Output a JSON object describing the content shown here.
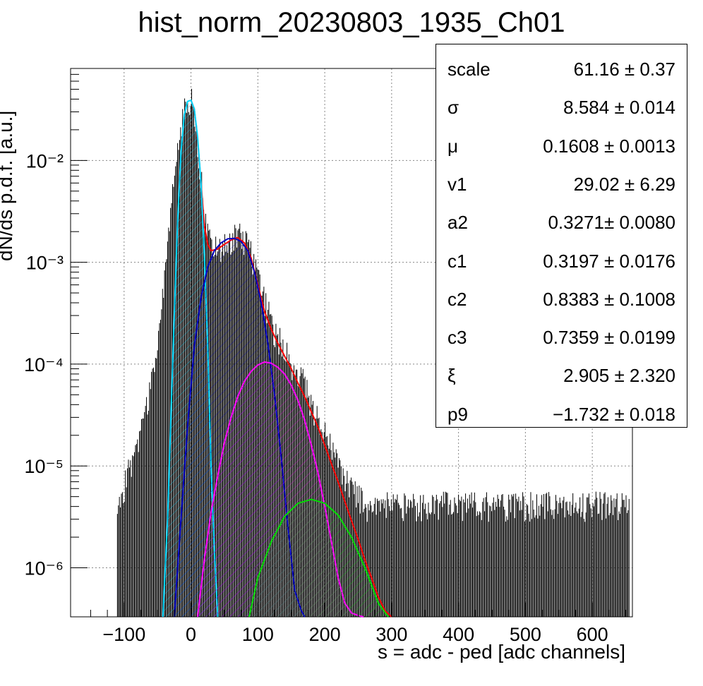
{
  "chart_data": {
    "type": "line",
    "title": "hist_norm_20230803_1935_Ch01",
    "xlabel": "s = adc - ped [adc channels]",
    "ylabel": "dN/ds p.d.f. [a.u.]",
    "xlim": [
      -180,
      660
    ],
    "ylim": [
      3.3e-07,
      0.08
    ],
    "yscale": "log",
    "grid": true,
    "xticks": [
      -100,
      0,
      100,
      200,
      300,
      400,
      500,
      600
    ],
    "xtick_labels": [
      "−100",
      "0",
      "100",
      "200",
      "300",
      "400",
      "500",
      "600"
    ],
    "yticks": [
      1e-06,
      1e-05,
      0.0001,
      0.001,
      0.01
    ],
    "ytick_labels": [
      "10⁻⁶",
      "10⁻⁵",
      "10⁻⁴",
      "10⁻³",
      "10⁻²"
    ],
    "legend_position": "top-right",
    "stats": [
      {
        "name": "scale",
        "value": "61.16 ± 0.37"
      },
      {
        "name": "σ",
        "value": "8.584 ± 0.014"
      },
      {
        "name": "μ",
        "value": "0.1608 ± 0.0013"
      },
      {
        "name": "v1",
        "value": "29.02 ± 6.29"
      },
      {
        "name": "a2",
        "value": "0.3271± 0.0080"
      },
      {
        "name": "c1",
        "value": "0.3197 ± 0.0176"
      },
      {
        "name": "c2",
        "value": "0.8383 ± 0.1008"
      },
      {
        "name": "c3",
        "value": "0.7359 ± 0.0199"
      },
      {
        "name": "ξ",
        "value": "2.905 ± 2.320"
      },
      {
        "name": "p9",
        "value": "−1.732 ± 0.018"
      }
    ],
    "series": [
      {
        "color": "#000000",
        "kind": "histogram",
        "x": [
          -110,
          -100,
          -90,
          -80,
          -70,
          -60,
          -50,
          -40,
          -30,
          -20,
          -10,
          -5,
          0,
          5,
          10,
          20,
          30,
          40,
          50,
          60,
          70,
          80,
          90,
          100,
          110,
          120,
          130,
          140,
          150,
          160,
          170,
          180,
          190,
          200,
          210,
          220,
          230,
          240,
          250,
          260,
          270,
          280,
          290,
          300,
          320,
          340,
          360,
          380,
          400,
          450,
          500,
          550,
          600,
          650
        ],
        "y": [
          4e-06,
          6e-06,
          1e-05,
          1.5e-05,
          3e-05,
          6e-05,
          0.00015,
          0.0007,
          0.003,
          0.012,
          0.03,
          0.036,
          0.039,
          0.032,
          0.015,
          0.003,
          0.0014,
          0.0013,
          0.0015,
          0.00165,
          0.0018,
          0.0016,
          0.0012,
          0.0007,
          0.0004,
          0.00025,
          0.00018,
          0.00013,
          0.0001,
          8e-05,
          6e-05,
          4e-05,
          3e-05,
          2e-05,
          1.4e-05,
          1e-05,
          8e-06,
          6e-06,
          5e-06,
          4e-06,
          4e-06,
          4e-06,
          4e-06,
          4e-06,
          4e-06,
          4e-06,
          4e-06,
          4e-06,
          4e-06,
          4e-06,
          4e-06,
          4e-06,
          4e-06,
          4e-06
        ]
      },
      {
        "color": "#ff0000",
        "kind": "fit",
        "x": [
          0,
          5,
          10,
          15,
          20,
          25,
          30,
          40,
          50,
          60,
          70,
          80,
          90,
          100,
          110,
          120,
          130,
          140,
          150,
          160,
          170,
          180,
          190,
          200,
          210,
          220,
          230,
          240,
          250,
          260,
          270,
          280,
          290,
          300
        ],
        "y": [
          0.039,
          0.032,
          0.016,
          0.006,
          0.0023,
          0.0015,
          0.0013,
          0.00135,
          0.0015,
          0.00165,
          0.00175,
          0.00155,
          0.0011,
          0.0006,
          0.00033,
          0.00022,
          0.00016,
          0.00012,
          9e-05,
          6.5e-05,
          4.8e-05,
          3.4e-05,
          2.4e-05,
          1.6e-05,
          1.05e-05,
          7e-06,
          4.5e-06,
          2.9e-06,
          1.9e-06,
          1.2e-06,
          8e-07,
          5.2e-07,
          3.8e-07,
          3.3e-07
        ]
      },
      {
        "color": "#00d8ff",
        "kind": "component",
        "x": [
          -42,
          -35,
          -30,
          -25,
          -20,
          -15,
          -10,
          -5,
          0,
          5,
          10,
          15,
          20,
          25,
          30,
          35,
          40
        ],
        "y": [
          3.3e-07,
          3e-06,
          3e-05,
          0.0003,
          0.0025,
          0.012,
          0.028,
          0.038,
          0.039,
          0.032,
          0.017,
          0.006,
          0.0012,
          0.00015,
          1e-05,
          1.5e-06,
          3.3e-07
        ]
      },
      {
        "color": "#0000c0",
        "kind": "component",
        "x": [
          -25,
          -15,
          -5,
          5,
          15,
          25,
          35,
          45,
          55,
          65,
          75,
          85,
          95,
          105,
          115,
          125,
          135,
          145,
          155,
          165,
          170
        ],
        "y": [
          3.3e-07,
          3e-06,
          2.5e-05,
          0.00015,
          0.00045,
          0.0009,
          0.0013,
          0.00155,
          0.0017,
          0.00172,
          0.0016,
          0.0013,
          0.0008,
          0.0004,
          0.00016,
          5e-05,
          1.2e-05,
          2.5e-06,
          6e-07,
          3.8e-07,
          3.3e-07
        ]
      },
      {
        "color": "#ff00ff",
        "kind": "component",
        "x": [
          10,
          20,
          30,
          40,
          50,
          60,
          70,
          80,
          90,
          100,
          110,
          120,
          130,
          140,
          150,
          160,
          170,
          180,
          190,
          200,
          210,
          220,
          230,
          240,
          250,
          258
        ],
        "y": [
          3.3e-07,
          1.2e-06,
          3.5e-06,
          8e-06,
          1.7e-05,
          3e-05,
          4.8e-05,
          6.8e-05,
          8.5e-05,
          9.8e-05,
          0.000105,
          0.000102,
          9.3e-05,
          8e-05,
          6.2e-05,
          4.4e-05,
          2.8e-05,
          1.6e-05,
          8.5e-06,
          4e-06,
          1.8e-06,
          8e-07,
          4.5e-07,
          3.6e-07,
          3.4e-07,
          3.3e-07
        ]
      },
      {
        "color": "#00dd00",
        "kind": "component",
        "x": [
          87,
          100,
          120,
          140,
          160,
          180,
          200,
          220,
          240,
          260,
          280,
          295
        ],
        "y": [
          3.3e-07,
          8e-07,
          1.8e-06,
          3.2e-06,
          4.3e-06,
          4.7e-06,
          4.3e-06,
          3.3e-06,
          2e-06,
          1e-06,
          4.5e-07,
          3.3e-07
        ]
      }
    ]
  }
}
